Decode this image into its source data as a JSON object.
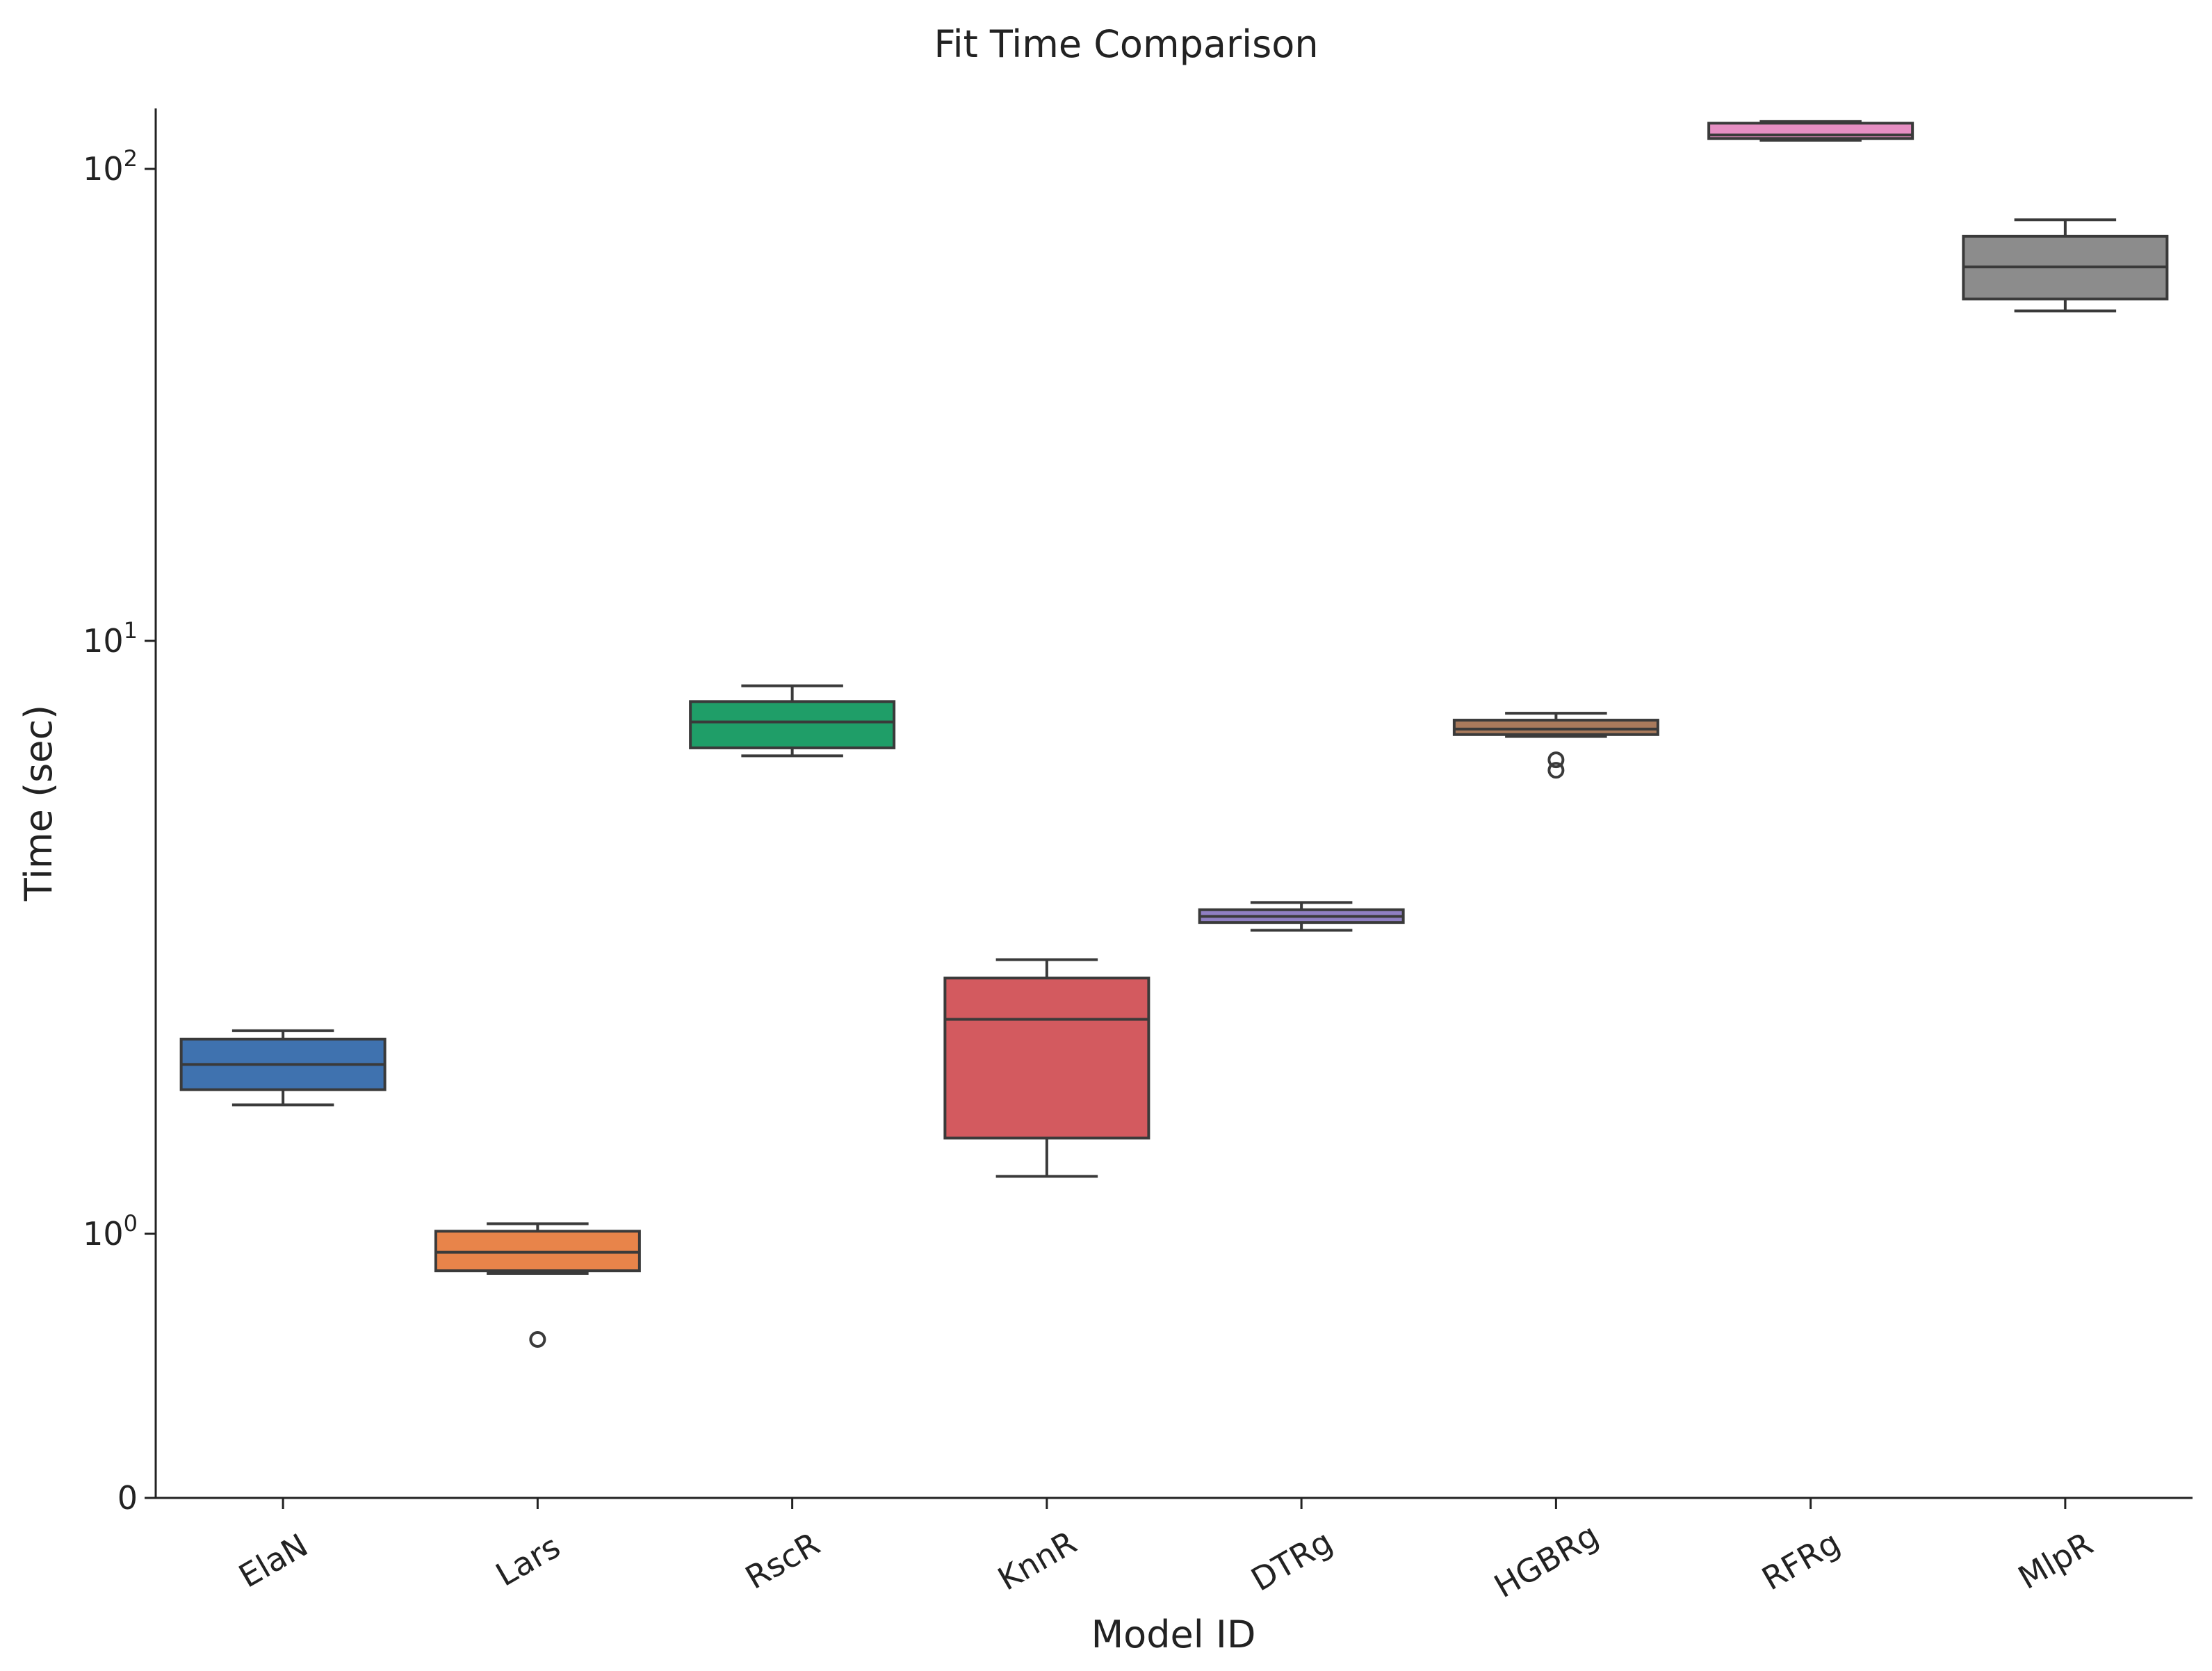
{
  "chart_data": {
    "type": "box",
    "title": "Fit Time Comparison",
    "xlabel": "Model ID",
    "ylabel": "Time (sec)",
    "yscale": "symlog",
    "yticks": [
      {
        "value": 0,
        "base": "0",
        "exp": ""
      },
      {
        "value": 1,
        "base": "10",
        "exp": "0"
      },
      {
        "value": 10,
        "base": "10",
        "exp": "1"
      },
      {
        "value": 100,
        "base": "10",
        "exp": "2"
      }
    ],
    "ylim": [
      0,
      130
    ],
    "grid": false,
    "categories": [
      "ElaN",
      "Lars",
      "RscR",
      "KnnR",
      "DTRg",
      "HGBRg",
      "RFRg",
      "MlpR"
    ],
    "boxes": [
      {
        "name": "ElaN",
        "color": "#3f72af",
        "whislo": 1.65,
        "q1": 1.75,
        "med": 1.93,
        "q3": 2.13,
        "whishi": 2.2,
        "fliers": []
      },
      {
        "name": "Lars",
        "color": "#e8844a",
        "whislo": 0.85,
        "q1": 0.86,
        "med": 0.93,
        "q3": 1.01,
        "whishi": 1.04,
        "fliers": [
          0.6
        ]
      },
      {
        "name": "RscR",
        "color": "#1f9e68",
        "whislo": 6.4,
        "q1": 6.6,
        "med": 7.3,
        "q3": 7.9,
        "whishi": 8.4,
        "fliers": []
      },
      {
        "name": "KnnR",
        "color": "#d35a5f",
        "whislo": 1.25,
        "q1": 1.45,
        "med": 2.3,
        "q3": 2.7,
        "whishi": 2.9,
        "fliers": []
      },
      {
        "name": "DTRg",
        "color": "#8f7fc2",
        "whislo": 3.25,
        "q1": 3.35,
        "med": 3.43,
        "q3": 3.52,
        "whishi": 3.62,
        "fliers": []
      },
      {
        "name": "HGBRg",
        "color": "#a97a5c",
        "whislo": 6.9,
        "q1": 6.95,
        "med": 7.1,
        "q3": 7.35,
        "whishi": 7.55,
        "fliers": [
          6.05,
          6.3
        ]
      },
      {
        "name": "RFRg",
        "color": "#e68fc3",
        "whislo": 115,
        "q1": 116,
        "med": 118,
        "q3": 125,
        "whishi": 126,
        "fliers": []
      },
      {
        "name": "MlpR",
        "color": "#8c8c8c",
        "whislo": 50,
        "q1": 53,
        "med": 62,
        "q3": 72,
        "whishi": 78,
        "fliers": []
      }
    ]
  }
}
